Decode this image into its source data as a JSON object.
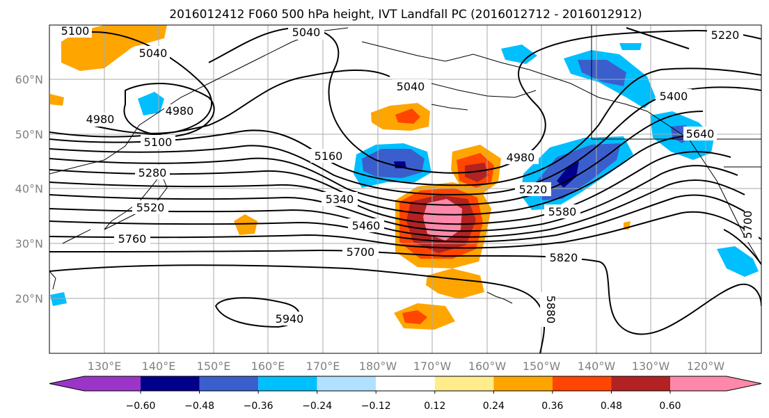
{
  "title": "2016012412 F060 500 hPa height, IVT Landfall PC (2016012712 - 2016012912)",
  "lat_ticks": [
    "60°N",
    "50°N",
    "40°N",
    "30°N",
    "20°N"
  ],
  "lon_ticks": [
    "130°E",
    "140°E",
    "150°E",
    "160°E",
    "170°E",
    "180°W",
    "170°W",
    "160°W",
    "150°W",
    "140°W",
    "130°W",
    "120°W"
  ],
  "colorbar": {
    "colors": [
      "#9b35c8",
      "#00008b",
      "#3a5fcd",
      "#00bfff",
      "#b0e2ff",
      "#ffffff",
      "#ffec8b",
      "#ffa500",
      "#ff4500",
      "#b22222",
      "#ff88aa"
    ],
    "labels": [
      "−0.60",
      "−0.48",
      "−0.36",
      "−0.24",
      "−0.12",
      "0.12",
      "0.24",
      "0.36",
      "0.48",
      "0.60"
    ]
  },
  "contour_labels": [
    "5100",
    "5040",
    "5040",
    "4980",
    "4980",
    "5040",
    "5100",
    "5280",
    "5160",
    "4980",
    "5220",
    "5340",
    "5520",
    "5460",
    "5580",
    "5760",
    "5700",
    "5820",
    "5880",
    "5940",
    "5400",
    "5640",
    "5220",
    "5700"
  ]
}
